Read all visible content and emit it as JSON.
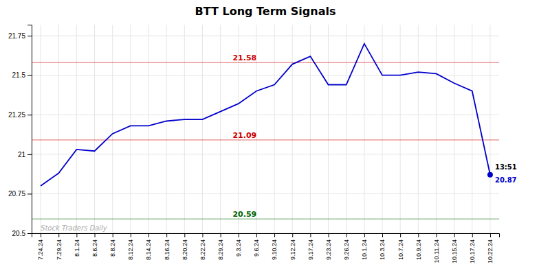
{
  "chart_data": {
    "type": "line",
    "title": "BTT Long Term Signals",
    "categories": [
      "7.24.24",
      "7.29.24",
      "8.1.24",
      "8.6.24",
      "8.8.24",
      "8.12.24",
      "8.14.24",
      "8.16.24",
      "8.20.24",
      "8.22.24",
      "8.29.24",
      "9.3.24",
      "9.6.24",
      "9.10.24",
      "9.12.24",
      "9.17.24",
      "9.23.24",
      "9.26.24",
      "10.1.24",
      "10.3.24",
      "10.7.24",
      "10.9.24",
      "10.11.24",
      "10.15.24",
      "10.17.24",
      "10.22.24"
    ],
    "values": [
      20.8,
      20.88,
      21.03,
      21.02,
      21.13,
      21.18,
      21.18,
      21.21,
      21.22,
      21.22,
      21.27,
      21.32,
      21.4,
      21.44,
      21.57,
      21.62,
      21.44,
      21.44,
      21.7,
      21.5,
      21.5,
      21.52,
      21.51,
      21.45,
      21.4,
      20.87
    ],
    "color": "#0000cc",
    "ylim": [
      20.5,
      21.82
    ],
    "yticks": [
      20.5,
      20.75,
      21,
      21.25,
      21.5,
      21.75
    ],
    "grid": true,
    "annotations": [
      {
        "type": "hline",
        "value": 21.58,
        "label": "21.58",
        "color": "#cc0000"
      },
      {
        "type": "hline",
        "value": 21.09,
        "label": "21.09",
        "color": "#cc0000"
      },
      {
        "type": "hline",
        "value": 20.59,
        "label": "20.59",
        "color": "#006600"
      },
      {
        "type": "last_point",
        "text": "13:51"
      },
      {
        "type": "watermark",
        "text": "Stock Traders Daily"
      }
    ]
  }
}
